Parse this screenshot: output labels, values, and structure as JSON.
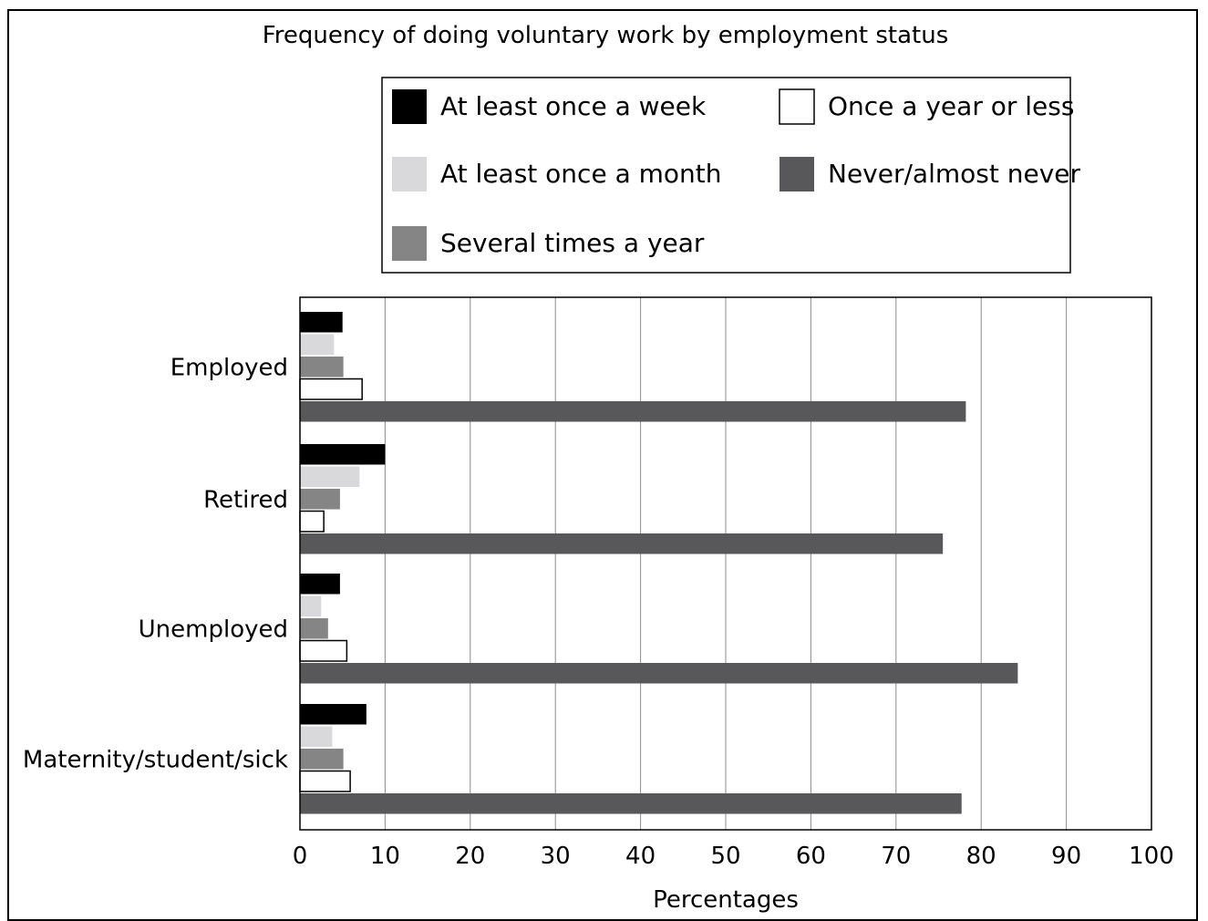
{
  "chart_data": {
    "type": "bar",
    "orientation": "horizontal",
    "title": "Frequency of doing voluntary work by employment status",
    "xlabel": "Percentages",
    "ylabel": "",
    "xlim": [
      0,
      100
    ],
    "x_ticks": [
      0,
      10,
      20,
      30,
      40,
      50,
      60,
      70,
      80,
      90,
      100
    ],
    "grid": "vertical",
    "legend_position": "top",
    "categories": [
      "Employed",
      "Retired",
      "Unemployed",
      "Maternity/student/sick"
    ],
    "series": [
      {
        "name": "At least once a week",
        "color": "#000000",
        "values": [
          5,
          10,
          4.7,
          7.8
        ]
      },
      {
        "name": "At least once a month",
        "color": "#d9d9db",
        "values": [
          4,
          7,
          2.5,
          3.8
        ]
      },
      {
        "name": "Several times a year",
        "color": "#858585",
        "values": [
          5.1,
          4.7,
          3.3,
          5.1
        ]
      },
      {
        "name": "Once a year or less",
        "color": "#ffffff",
        "values": [
          7.3,
          2.8,
          5.5,
          5.9
        ]
      },
      {
        "name": "Never/almost never",
        "color": "#58585a",
        "values": [
          78.2,
          75.5,
          84.3,
          77.7
        ]
      }
    ]
  }
}
